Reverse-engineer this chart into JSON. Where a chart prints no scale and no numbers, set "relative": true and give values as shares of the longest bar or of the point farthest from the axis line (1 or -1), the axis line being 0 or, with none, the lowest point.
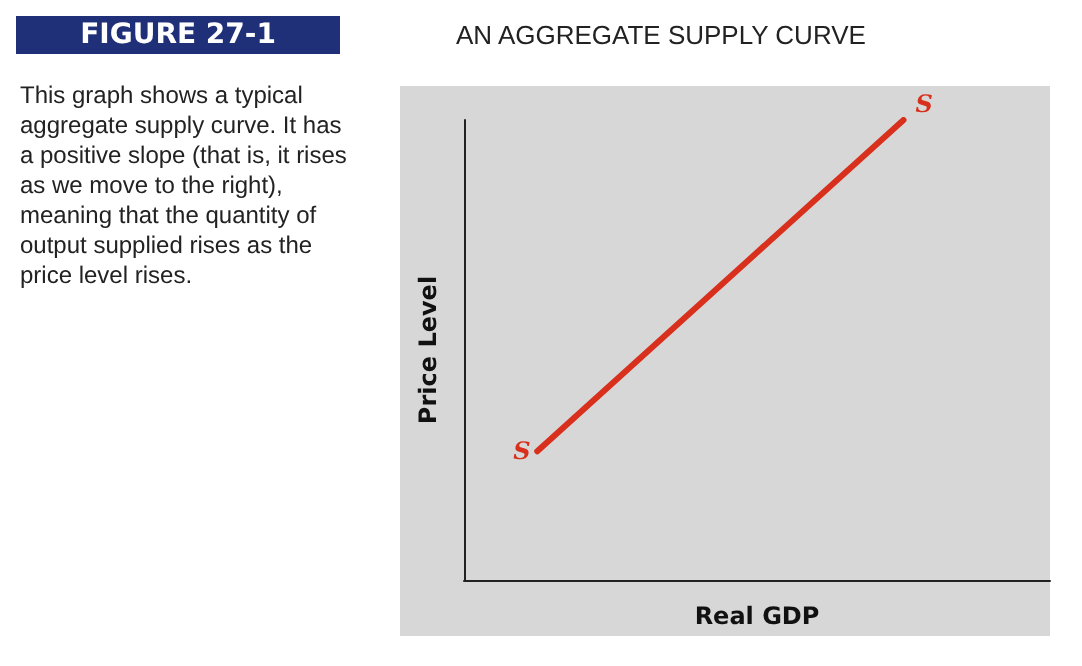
{
  "chart_data": {
    "type": "line",
    "title": "AN AGGREGATE SUPPLY CURVE",
    "subtitle": "FIGURE 27-1",
    "xlabel": "Real GDP",
    "ylabel": "Price Level",
    "annotations": [
      "This graph shows a typical aggregate supply curve. It has a positive slope (that is, it rises as we move to the right), meaning that the quantity of output supplied rises as the price level rises.",
      "S",
      "S"
    ],
    "categories": [
      null,
      null,
      null,
      null,
      null,
      null,
      null,
      null,
      null
    ],
    "relative": true,
    "series": [
      {
        "color": "#d8301c",
        "values": [
          null,
          0.28,
          null,
          null,
          null,
          null,
          1,
          null,
          null
        ]
      }
    ],
    "tick_labels": false,
    "grid": false,
    "marker": "none",
    "line_style": "solid"
  }
}
